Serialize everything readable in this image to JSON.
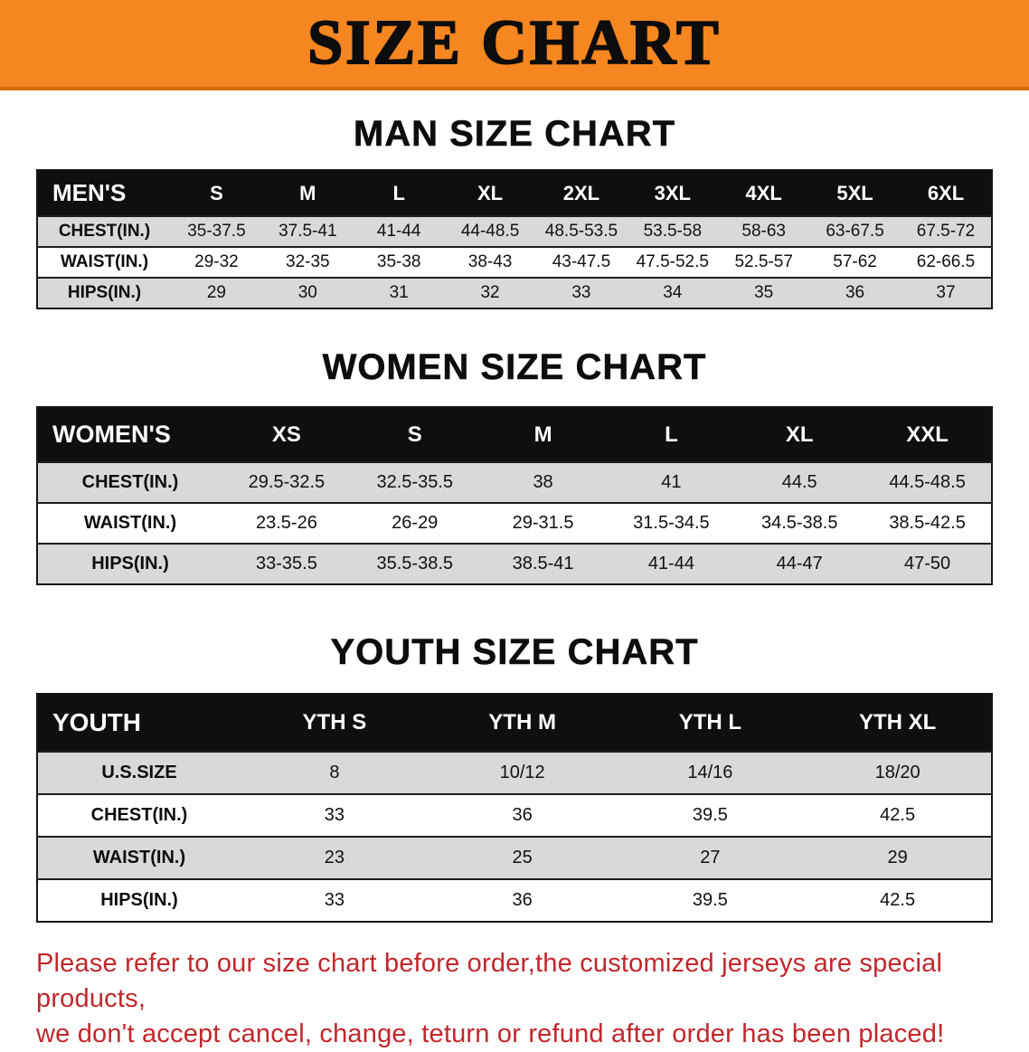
{
  "banner": {
    "title": "SIZE CHART",
    "bg_color": "#F6861F"
  },
  "sections": [
    {
      "heading": "MAN SIZE CHART",
      "table": {
        "header": [
          "MEN'S",
          "S",
          "M",
          "L",
          "XL",
          "2XL",
          "3XL",
          "4XL",
          "5XL",
          "6XL"
        ],
        "rows": [
          {
            "label": "CHEST(IN.)",
            "values": [
              "35-37.5",
              "37.5-41",
              "41-44",
              "44-48.5",
              "48.5-53.5",
              "53.5-58",
              "58-63",
              "63-67.5",
              "67.5-72"
            ]
          },
          {
            "label": "WAIST(IN.)",
            "values": [
              "29-32",
              "32-35",
              "35-38",
              "38-43",
              "43-47.5",
              "47.5-52.5",
              "52.5-57",
              "57-62",
              "62-66.5"
            ]
          },
          {
            "label": "HIPS(IN.)",
            "values": [
              "29",
              "30",
              "31",
              "32",
              "33",
              "34",
              "35",
              "36",
              "37"
            ]
          }
        ]
      }
    },
    {
      "heading": "WOMEN SIZE CHART",
      "table": {
        "header": [
          "WOMEN'S",
          "XS",
          "S",
          "M",
          "L",
          "XL",
          "XXL"
        ],
        "rows": [
          {
            "label": "CHEST(IN.)",
            "values": [
              "29.5-32.5",
              "32.5-35.5",
              "38",
              "41",
              "44.5",
              "44.5-48.5"
            ]
          },
          {
            "label": "WAIST(IN.)",
            "values": [
              "23.5-26",
              "26-29",
              "29-31.5",
              "31.5-34.5",
              "34.5-38.5",
              "38.5-42.5"
            ]
          },
          {
            "label": "HIPS(IN.)",
            "values": [
              "33-35.5",
              "35.5-38.5",
              "38.5-41",
              "41-44",
              "44-47",
              "47-50"
            ]
          }
        ]
      }
    },
    {
      "heading": "YOUTH SIZE CHART",
      "table": {
        "header": [
          "YOUTH",
          "YTH S",
          "YTH M",
          "YTH L",
          "YTH XL"
        ],
        "rows": [
          {
            "label": "U.S.SIZE",
            "values": [
              "8",
              "10/12",
              "14/16",
              "18/20"
            ]
          },
          {
            "label": "CHEST(IN.)",
            "values": [
              "33",
              "36",
              "39.5",
              "42.5"
            ]
          },
          {
            "label": "WAIST(IN.)",
            "values": [
              "23",
              "25",
              "27",
              "29"
            ]
          },
          {
            "label": "HIPS(IN.)",
            "values": [
              "33",
              "36",
              "39.5",
              "42.5"
            ]
          }
        ]
      }
    }
  ],
  "disclaimer": {
    "color": "#C1272D",
    "lines": [
      "Please refer to our size chart before order,the customized jerseys are special products,",
      "we don't accept cancel, change, teturn or refund after order has been placed!"
    ]
  }
}
